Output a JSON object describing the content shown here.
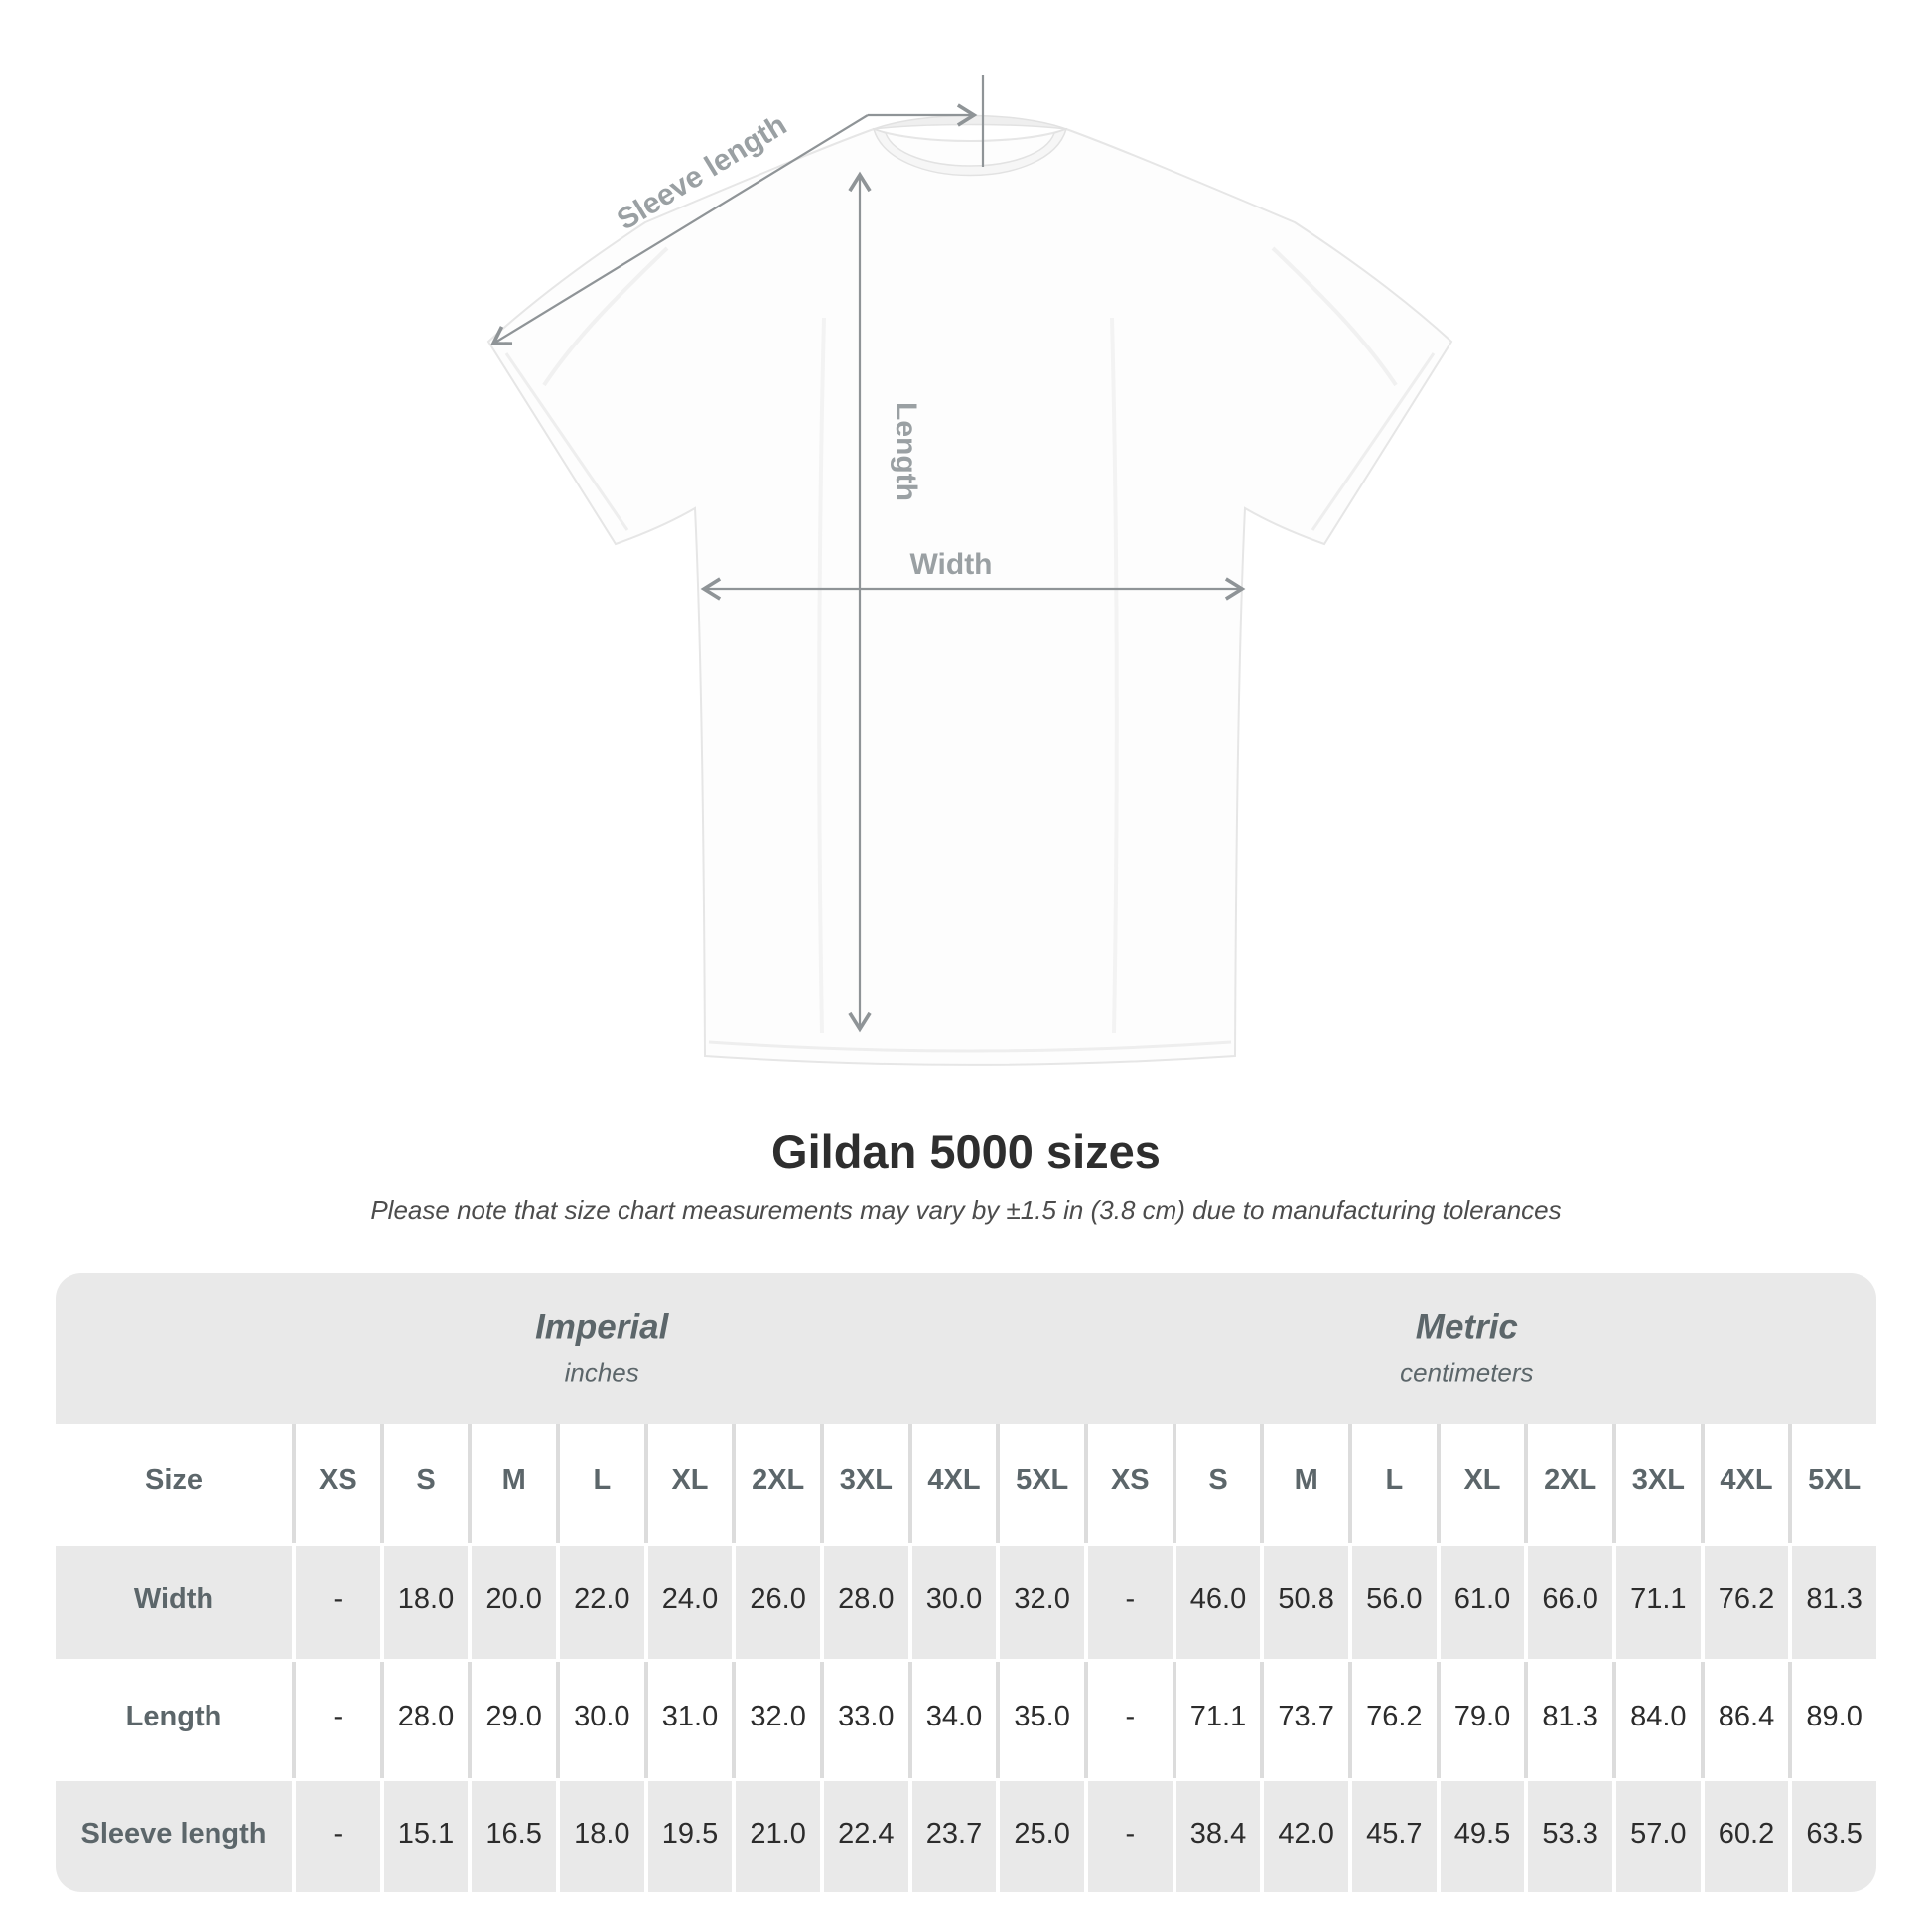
{
  "chart_data": {
    "type": "table",
    "title": "Gildan 5000 sizes",
    "subtitle": "Please note that size chart measurements may vary by ±1.5 in (3.8 cm) due to manufacturing tolerances",
    "diagram_labels": {
      "sleeve_length": "Sleeve length",
      "length": "Length",
      "width": "Width"
    },
    "unit_groups": [
      {
        "label": "Imperial",
        "sublabel": "inches"
      },
      {
        "label": "Metric",
        "sublabel": "centimeters"
      }
    ],
    "size_column_header": "Size",
    "size_headers": [
      "XS",
      "S",
      "M",
      "L",
      "XL",
      "2XL",
      "3XL",
      "4XL",
      "5XL",
      "XS",
      "S",
      "M",
      "L",
      "XL",
      "2XL",
      "3XL",
      "4XL",
      "5XL"
    ],
    "rows": [
      {
        "label": "Width",
        "values": [
          "-",
          "18.0",
          "20.0",
          "22.0",
          "24.0",
          "26.0",
          "28.0",
          "30.0",
          "32.0",
          "-",
          "46.0",
          "50.8",
          "56.0",
          "61.0",
          "66.0",
          "71.1",
          "76.2",
          "81.3"
        ]
      },
      {
        "label": "Length",
        "values": [
          "-",
          "28.0",
          "29.0",
          "30.0",
          "31.0",
          "32.0",
          "33.0",
          "34.0",
          "35.0",
          "-",
          "71.1",
          "73.7",
          "76.2",
          "79.0",
          "81.3",
          "84.0",
          "86.4",
          "89.0"
        ]
      },
      {
        "label": "Sleeve length",
        "values": [
          "-",
          "15.1",
          "16.5",
          "18.0",
          "19.5",
          "21.0",
          "22.4",
          "23.7",
          "25.0",
          "-",
          "38.4",
          "42.0",
          "45.7",
          "49.5",
          "53.3",
          "57.0",
          "60.2",
          "63.5"
        ]
      }
    ]
  },
  "colors": {
    "table_band_gray": "#e9e9e9",
    "divider_gray": "#dcdcdc",
    "header_text": "#5c666a",
    "value_text": "#2c2c2c",
    "annotation_gray": "#8f9497",
    "background": "#ffffff"
  }
}
